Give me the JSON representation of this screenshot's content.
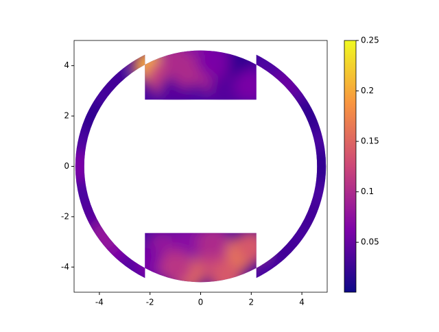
{
  "chart_data": {
    "type": "tripcolor",
    "xlim": [
      -5,
      5
    ],
    "ylim": [
      -5,
      5
    ],
    "xticks": [
      -4,
      -2,
      0,
      2,
      4
    ],
    "yticks": [
      -4,
      -2,
      0,
      2,
      4
    ],
    "domain": {
      "outer_radius": 4.95,
      "inner_radius": 4.6,
      "cap_half_width": 2.2,
      "cap_inner_y": 2.65
    },
    "colormap": "plasma",
    "clim": [
      0.0005,
      0.25
    ],
    "colorbar_ticks": [
      0.05,
      0.1,
      0.15,
      0.2,
      0.25
    ],
    "points": {
      "x": [
        -2,
        -1.5,
        -1,
        0,
        0.5,
        1.5,
        1,
        -1,
        2,
        -0.5,
        0.5,
        1.5,
        0.5,
        -0.5,
        -1.5,
        -0.5,
        1,
        -2,
        0.5,
        2,
        -1,
        4.8,
        -4.8,
        3.4,
        -3.4,
        3.4,
        -3.4,
        4.3,
        -4.3,
        4.3,
        -4.3,
        -3.8
      ],
      "y": [
        4,
        3.5,
        4.3,
        4.5,
        3.5,
        4.2,
        3,
        3,
        3.2,
        3.8,
        4.2,
        -3.5,
        -3.8,
        -4.3,
        -3.2,
        -3,
        -4.4,
        -3.9,
        -3,
        -3.2,
        -4,
        0,
        0,
        3.3,
        3.3,
        -3.3,
        -3.3,
        2,
        2,
        -2,
        -2,
        -2.8
      ],
      "values": [
        0.2,
        0.12,
        0.1,
        0.07,
        0.09,
        0.02,
        0.04,
        0.04,
        0.06,
        0.1,
        0.06,
        0.17,
        0.12,
        0.15,
        0.08,
        0.07,
        0.14,
        0.06,
        0.1,
        0.14,
        0.11,
        0.02,
        0.06,
        0.05,
        0.03,
        0.03,
        0.06,
        0.02,
        0.02,
        0.03,
        0.04,
        0.08
      ]
    }
  }
}
